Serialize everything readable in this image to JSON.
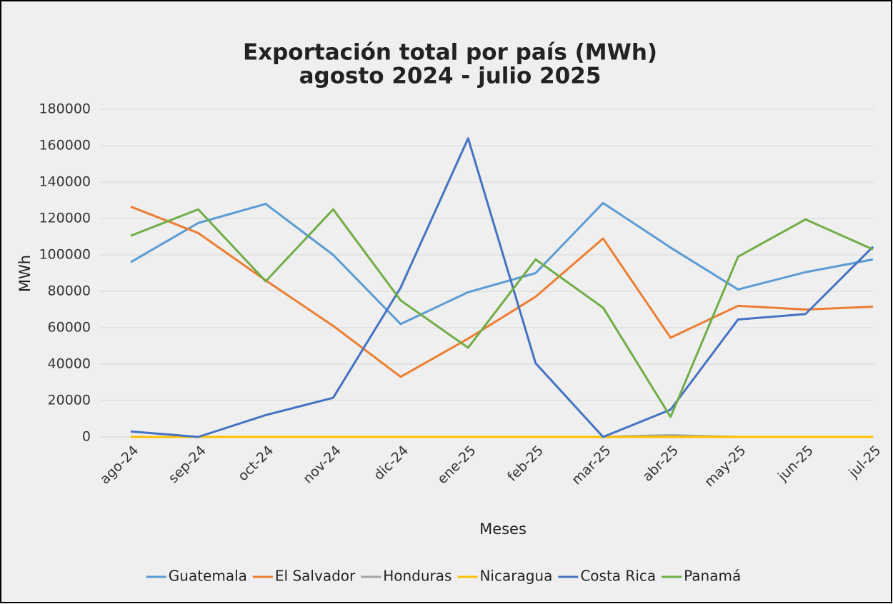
{
  "chart_data": {
    "type": "line",
    "title": "Exportación total por país (MWh)",
    "subtitle": "agosto 2024 - julio 2025",
    "x_label": "Meses",
    "y_label": "MWh",
    "categories": [
      "ago-24",
      "sep-24",
      "oct-24",
      "nov-24",
      "dic-24",
      "ene-25",
      "feb-25",
      "mar-25",
      "abr-25",
      "may-25",
      "jun-25",
      "jul-25"
    ],
    "series": [
      {
        "name": "Guatemala",
        "color": "#5b9bd5",
        "values": [
          96000,
          117500,
          128000,
          100000,
          62000,
          79500,
          90000,
          128500,
          104000,
          81000,
          90500,
          97500
        ]
      },
      {
        "name": "El Salvador",
        "color": "#ed7d31",
        "values": [
          126500,
          112000,
          86000,
          61000,
          33000,
          54000,
          77000,
          109000,
          54500,
          72000,
          70000,
          71500
        ]
      },
      {
        "name": "Honduras",
        "color": "#a5a5a5",
        "values": [
          0,
          0,
          0,
          0,
          0,
          0,
          0,
          0,
          1000,
          0,
          0,
          0
        ]
      },
      {
        "name": "Nicaragua",
        "color": "#ffc000",
        "values": [
          0,
          0,
          0,
          0,
          0,
          0,
          0,
          0,
          0,
          0,
          0,
          0
        ]
      },
      {
        "name": "Costa Rica",
        "color": "#4472c4",
        "values": [
          3000,
          0,
          12000,
          21500,
          82000,
          164000,
          40500,
          0,
          15000,
          64500,
          67500,
          104500
        ]
      },
      {
        "name": "Panamá",
        "color": "#70ad47",
        "values": [
          110500,
          125000,
          85500,
          125000,
          75000,
          49000,
          97500,
          71000,
          11000,
          99000,
          119500,
          103000
        ]
      }
    ],
    "ylim": [
      0,
      180000
    ],
    "yticks": [
      0,
      20000,
      40000,
      60000,
      80000,
      100000,
      120000,
      140000,
      160000,
      180000
    ],
    "grid": true,
    "legend": "bottom"
  }
}
